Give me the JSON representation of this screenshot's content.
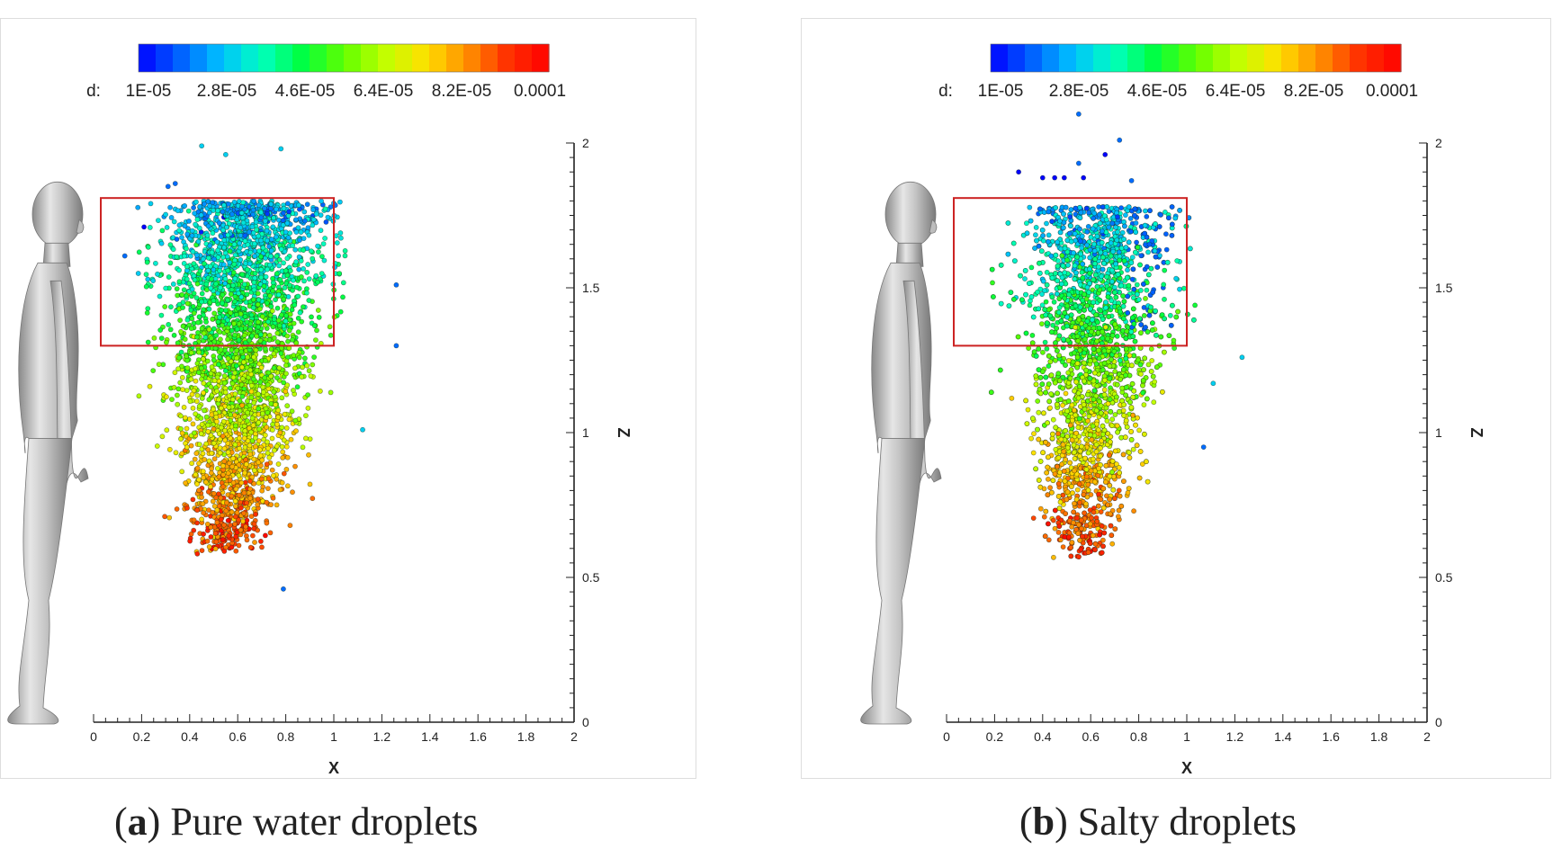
{
  "colors": {
    "divider": "#dddddd",
    "box": "#cc2222",
    "axis": "#222222",
    "human": "#b0b0b0"
  },
  "colorbar": {
    "label": "d:",
    "ticks": [
      "1E-05",
      "2.8E-05",
      "4.6E-05",
      "6.4E-05",
      "8.2E-05",
      "0.0001"
    ],
    "tick_values": [
      1e-05,
      2.8e-05,
      4.6e-05,
      6.4e-05,
      8.2e-05,
      0.0001
    ],
    "range": [
      1e-05,
      0.0001
    ],
    "colormap": [
      "#0000ff",
      "#0060ff",
      "#00c0ff",
      "#00ffc0",
      "#00ff40",
      "#60ff00",
      "#c0ff00",
      "#ffe000",
      "#ff9000",
      "#ff3000",
      "#ff0000"
    ]
  },
  "panels": [
    {
      "letter": "a",
      "caption": "Pure water droplets"
    },
    {
      "letter": "b",
      "caption": "Salty droplets"
    }
  ],
  "chart_data": [
    {
      "type": "scatter",
      "title": "",
      "xlabel": "X",
      "ylabel": "Z",
      "xlim": [
        0,
        2
      ],
      "ylim": [
        0,
        2
      ],
      "xticks": [
        "0",
        "0.2",
        "0.4",
        "0.6",
        "0.8",
        "1",
        "1.2",
        "1.4",
        "1.6",
        "1.8",
        "2"
      ],
      "yticks": [
        "0",
        "0.5",
        "1",
        "1.5",
        "2"
      ],
      "grid": false,
      "colorbar_position": "top",
      "box": {
        "x": [
          0.03,
          1.0
        ],
        "z": [
          1.3,
          1.81
        ]
      },
      "cloud": {
        "x_center": 0.6,
        "x_spread": 0.32,
        "z_top": 1.8,
        "z_bottom": 0.58,
        "z_center_low": 0.68
      },
      "outliers": [
        {
          "x": 0.45,
          "z": 1.99,
          "d": 3e-05
        },
        {
          "x": 0.55,
          "z": 1.96,
          "d": 3e-05
        },
        {
          "x": 0.78,
          "z": 1.98,
          "d": 3e-05
        },
        {
          "x": 0.31,
          "z": 1.85,
          "d": 2e-05
        },
        {
          "x": 0.34,
          "z": 1.86,
          "d": 2e-05
        },
        {
          "x": 0.21,
          "z": 1.71,
          "d": 1e-05
        },
        {
          "x": 0.13,
          "z": 1.61,
          "d": 2e-05
        },
        {
          "x": 1.26,
          "z": 1.51,
          "d": 2e-05
        },
        {
          "x": 1.26,
          "z": 1.3,
          "d": 2e-05
        },
        {
          "x": 1.12,
          "z": 1.01,
          "d": 3e-05
        },
        {
          "x": 0.79,
          "z": 0.46,
          "d": 2e-05
        }
      ]
    },
    {
      "type": "scatter",
      "title": "",
      "xlabel": "X",
      "ylabel": "Z",
      "xlim": [
        0,
        2
      ],
      "ylim": [
        0,
        2
      ],
      "xticks": [
        "0",
        "0.2",
        "0.4",
        "0.6",
        "0.8",
        "1",
        "1.2",
        "1.4",
        "1.6",
        "1.8",
        "2"
      ],
      "yticks": [
        "0",
        "0.5",
        "1",
        "1.5",
        "2"
      ],
      "grid": false,
      "colorbar_position": "top",
      "box": {
        "x": [
          0.03,
          1.0
        ],
        "z": [
          1.3,
          1.81
        ]
      },
      "cloud": {
        "x_center": 0.6,
        "x_spread": 0.28,
        "z_top": 1.78,
        "z_bottom": 0.56,
        "z_center_low": 0.66
      },
      "outliers": [
        {
          "x": 0.55,
          "z": 2.1,
          "d": 2e-05
        },
        {
          "x": 0.72,
          "z": 2.01,
          "d": 2e-05
        },
        {
          "x": 0.66,
          "z": 1.96,
          "d": 1e-05
        },
        {
          "x": 0.55,
          "z": 1.93,
          "d": 2e-05
        },
        {
          "x": 0.57,
          "z": 1.88,
          "d": 1e-05
        },
        {
          "x": 0.3,
          "z": 1.9,
          "d": 1e-05
        },
        {
          "x": 0.4,
          "z": 1.88,
          "d": 1e-05
        },
        {
          "x": 0.45,
          "z": 1.88,
          "d": 1e-05
        },
        {
          "x": 0.49,
          "z": 1.88,
          "d": 1e-05
        },
        {
          "x": 0.77,
          "z": 1.87,
          "d": 2e-05
        },
        {
          "x": 1.23,
          "z": 1.26,
          "d": 3e-05
        },
        {
          "x": 1.11,
          "z": 1.17,
          "d": 3e-05
        },
        {
          "x": 1.07,
          "z": 0.95,
          "d": 2e-05
        }
      ]
    }
  ]
}
